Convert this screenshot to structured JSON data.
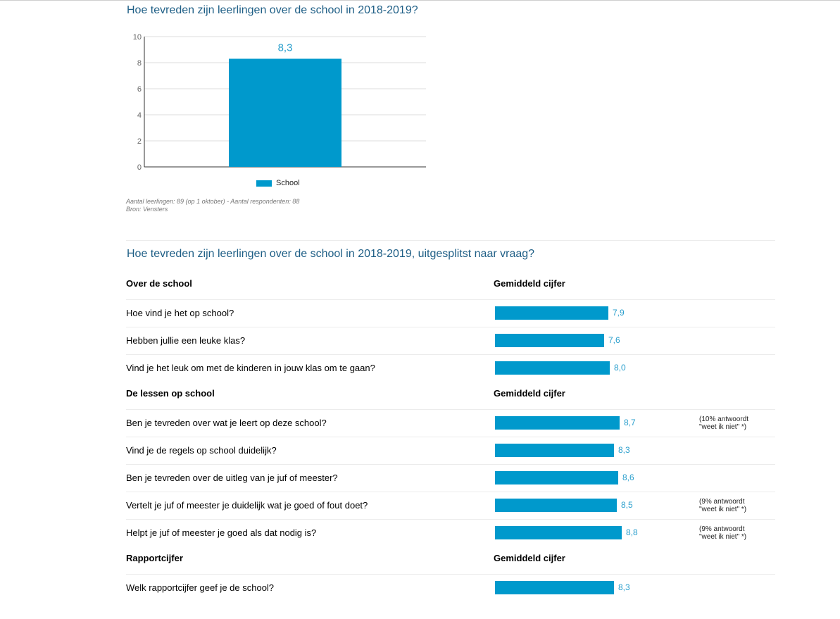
{
  "chart_data": [
    {
      "type": "bar",
      "title": "Hoe tevreden zijn leerlingen over de school in 2018-2019?",
      "categories": [
        "School"
      ],
      "values": [
        8.3
      ],
      "value_labels": [
        "8,3"
      ],
      "yticks": [
        "0",
        "2",
        "4",
        "6",
        "8",
        "10"
      ],
      "ylim": [
        0,
        10
      ],
      "legend": "School",
      "legend_position": "bottom",
      "grid": true,
      "color": "#0099cc"
    },
    {
      "type": "bar",
      "orientation": "horizontal",
      "title": "Hoe tevreden zijn leerlingen over de school in 2018-2019, uitgesplitst naar vraag?",
      "xlim": [
        0,
        10
      ],
      "color": "#0099cc",
      "sections": [
        {
          "heading": "Over de school",
          "value_heading": "Gemiddeld cijfer",
          "items": [
            {
              "question": "Hoe vind je het op school?",
              "value": 7.9,
              "label": "7,9",
              "note": ""
            },
            {
              "question": "Hebben jullie een leuke klas?",
              "value": 7.6,
              "label": "7,6",
              "note": ""
            },
            {
              "question": "Vind je het leuk om met de kinderen in jouw klas om te gaan?",
              "value": 8.0,
              "label": "8,0",
              "note": ""
            }
          ]
        },
        {
          "heading": "De lessen op school",
          "value_heading": "Gemiddeld cijfer",
          "items": [
            {
              "question": "Ben je tevreden over wat je leert op deze school?",
              "value": 8.7,
              "label": "8,7",
              "note": "(10% antwoordt",
              "note2": "\"weet ik niet\" *)"
            },
            {
              "question": "Vind je de regels op school duidelijk?",
              "value": 8.3,
              "label": "8,3",
              "note": ""
            },
            {
              "question": "Ben je tevreden over de uitleg van je juf of meester?",
              "value": 8.6,
              "label": "8,6",
              "note": ""
            },
            {
              "question": "Vertelt je juf of meester je duidelijk wat je goed of fout doet?",
              "value": 8.5,
              "label": "8,5",
              "note": "(9% antwoordt",
              "note2": "\"weet ik niet\" *)"
            },
            {
              "question": "Helpt je juf of meester je goed als dat nodig is?",
              "value": 8.8,
              "label": "8,8",
              "note": "(9% antwoordt",
              "note2": "\"weet ik niet\" *)"
            }
          ]
        },
        {
          "heading": "Rapportcijfer",
          "value_heading": "Gemiddeld cijfer",
          "items": [
            {
              "question": "Welk rapportcijfer geef je de school?",
              "value": 8.3,
              "label": "8,3",
              "note": ""
            }
          ]
        }
      ]
    }
  ],
  "notes": {
    "respondents": "Aantal leerlingen: 89 (op 1 oktober) - Aantal respondenten: 88",
    "source": "Bron: Vensters"
  }
}
